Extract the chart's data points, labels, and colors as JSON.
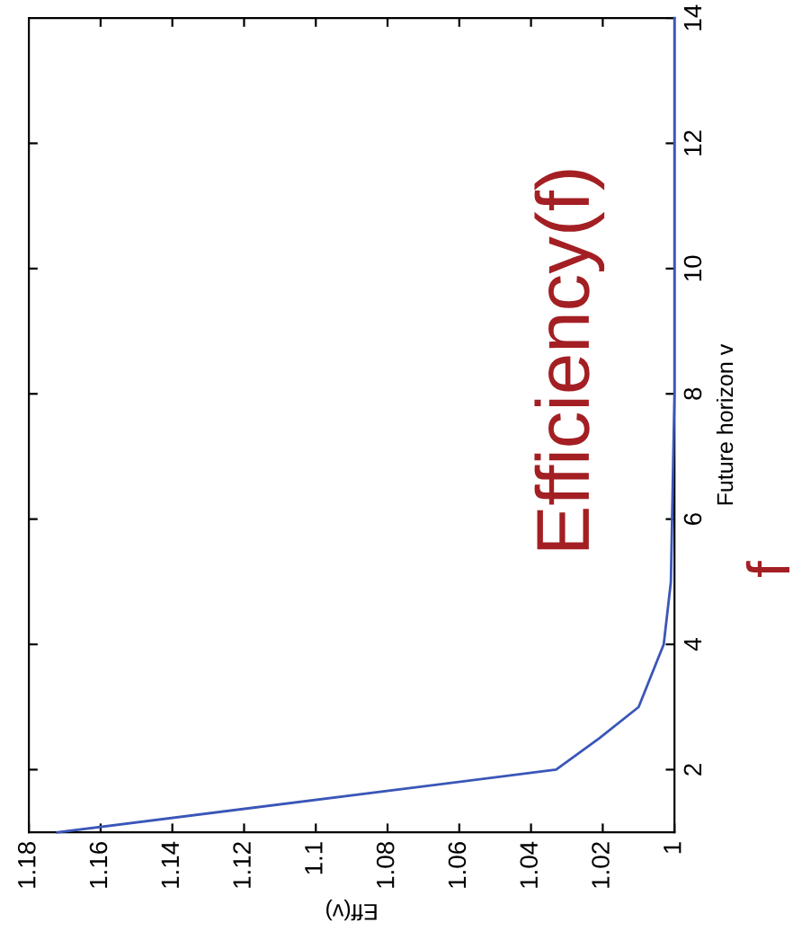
{
  "chart_data": {
    "type": "line",
    "xlabel": "Eff(v)",
    "ylabel": "Future horizon v",
    "series": [
      {
        "color": "#3a56b8",
        "x": [
          1.172,
          1.033,
          1.021,
          1.01,
          1.003,
          1.001,
          1.0005,
          1,
          1,
          1,
          1
        ],
        "values": [
          1,
          2,
          2.5,
          3,
          4,
          5,
          6.5,
          8,
          10,
          12,
          14
        ]
      }
    ],
    "xlim": [
      1.18,
      1
    ],
    "xticks": [
      1,
      1.02,
      1.04,
      1.06,
      1.08,
      1.1,
      1.12,
      1.14,
      1.16,
      1.18
    ],
    "ylim": [
      1,
      14
    ],
    "yticks": [
      2,
      4,
      6,
      8,
      10,
      12,
      14
    ],
    "annotations": [
      "Efficiency(f)",
      "f"
    ],
    "grid": false,
    "legend": false
  }
}
